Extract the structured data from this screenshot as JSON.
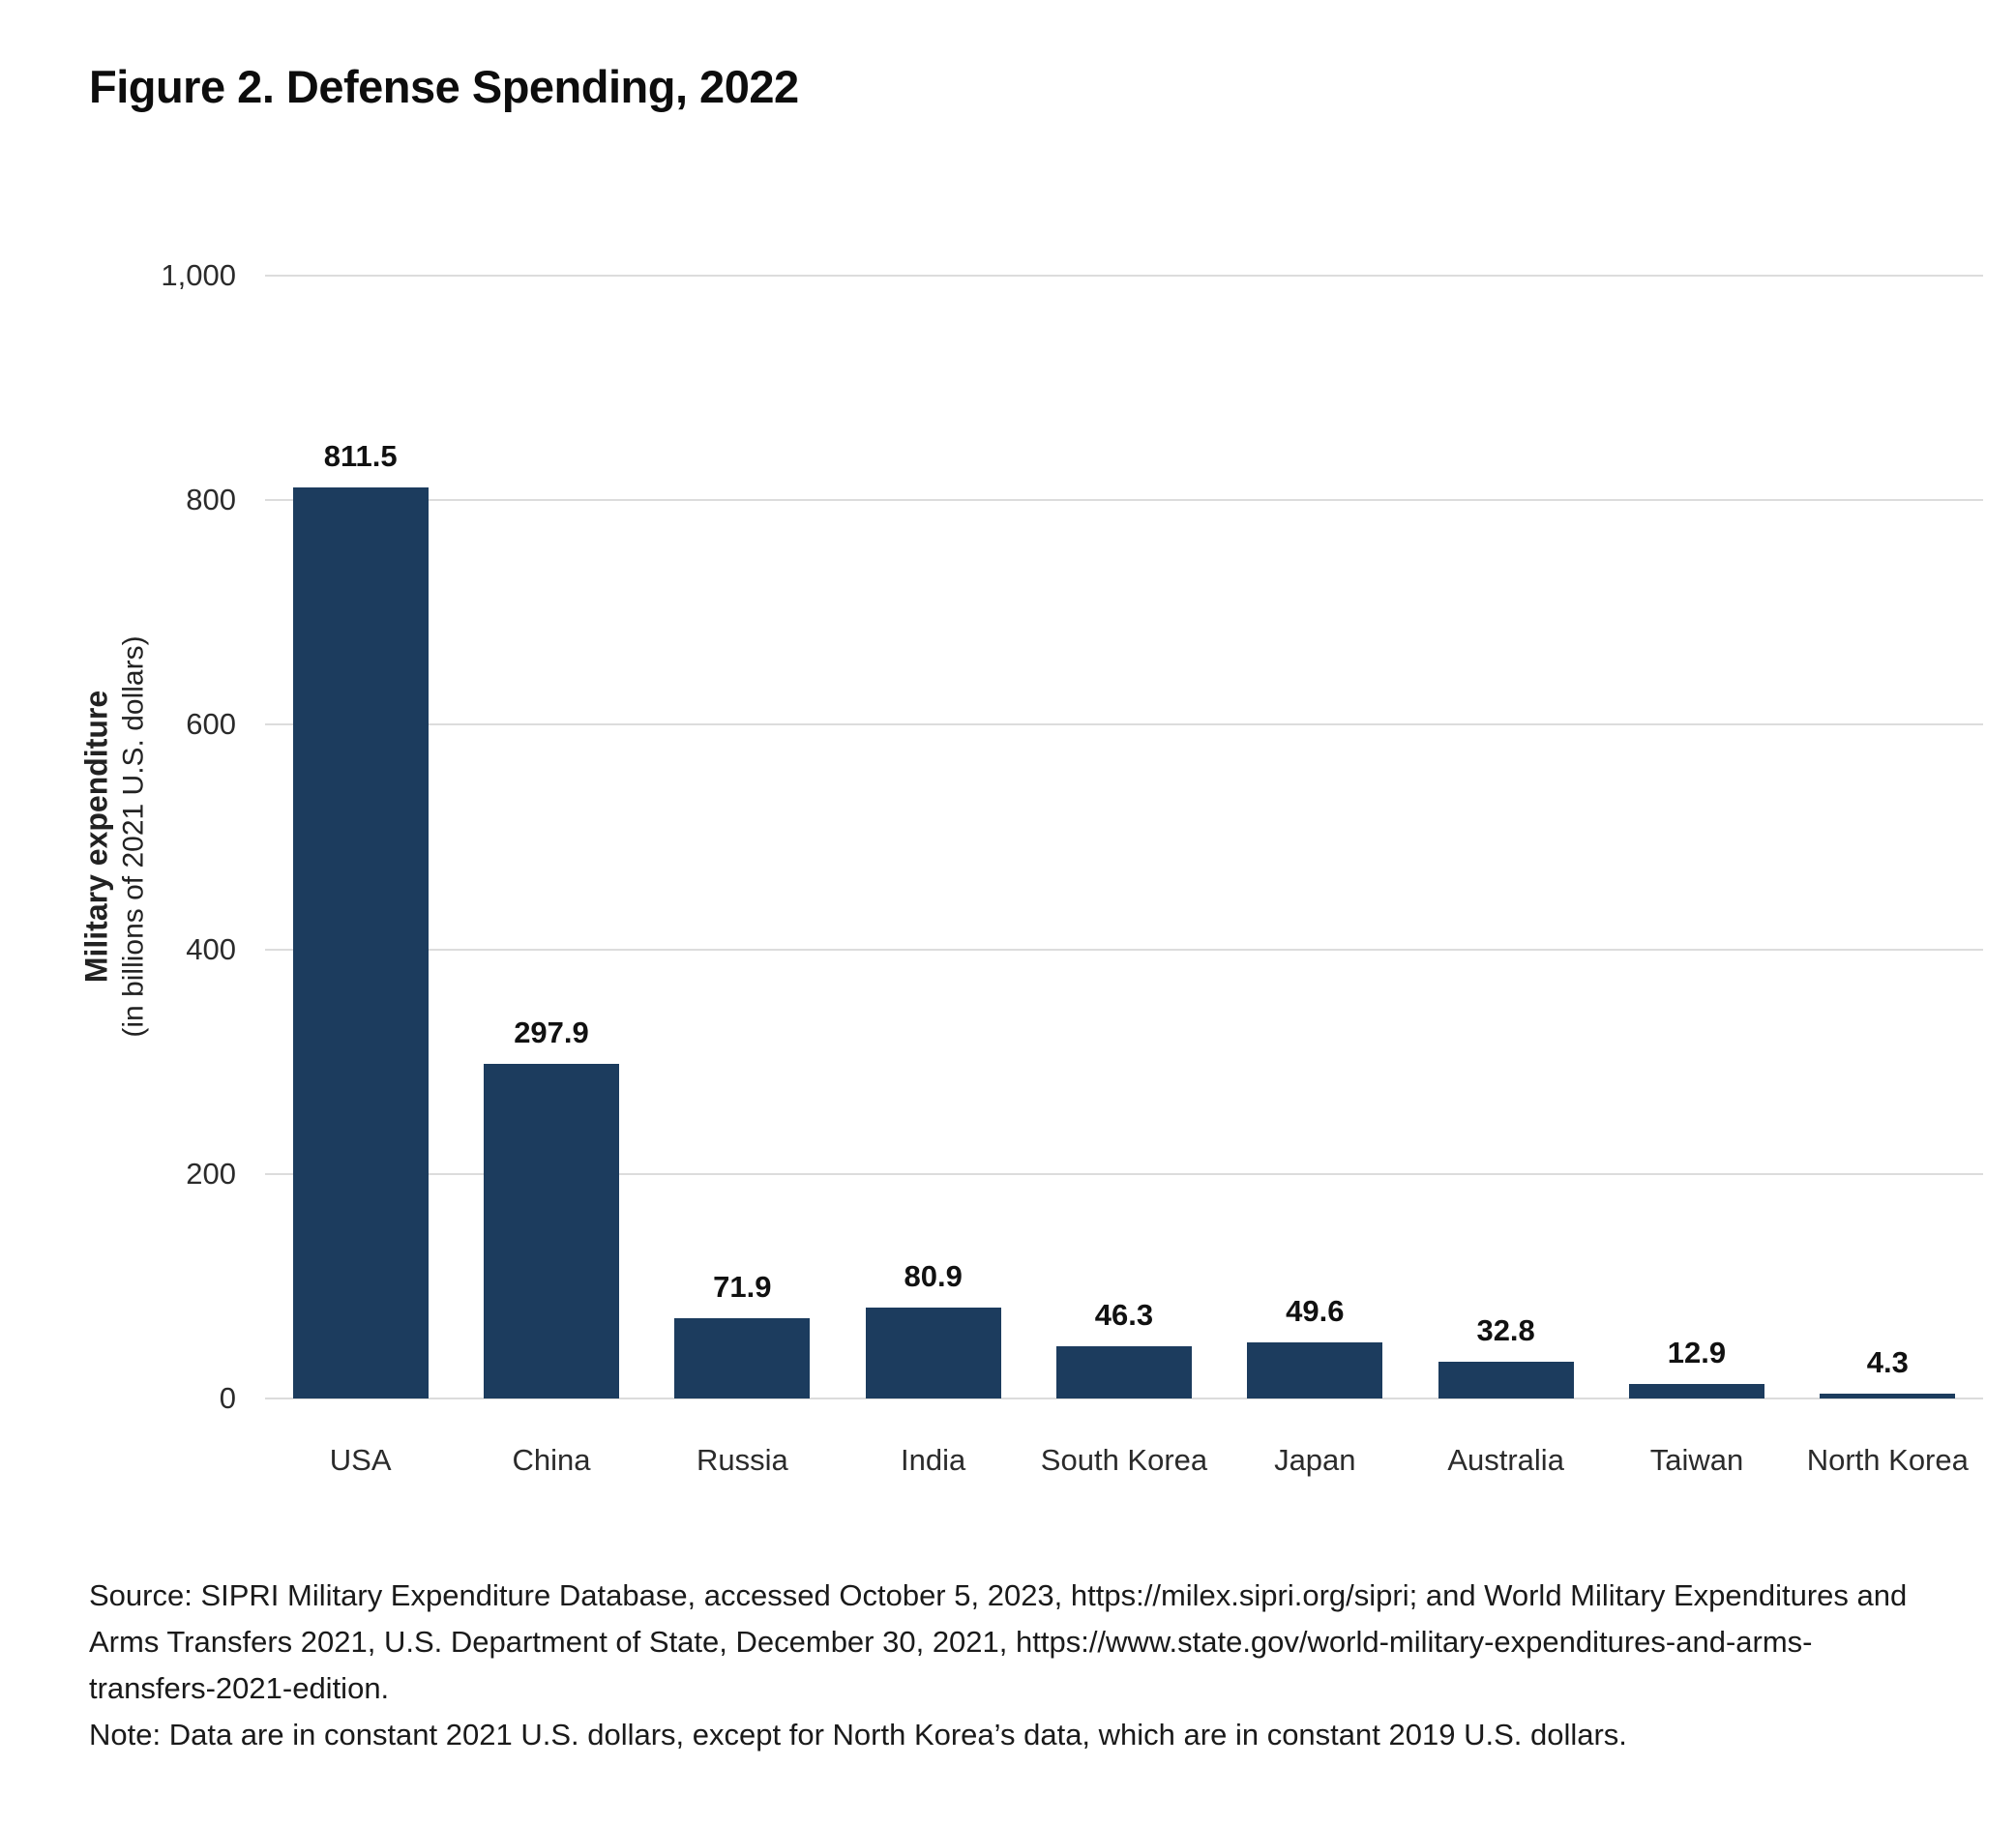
{
  "figure": {
    "title": "Figure 2. Defense Spending, 2022",
    "source": "Source: SIPRI Military Expenditure Database, accessed October 5, 2023, https://milex.sipri.org/sipri; and World Military Expenditures and Arms Transfers 2021, U.S. Department of State, December 30, 2021, https://www.state.gov/world-military-expenditures-and-arms-transfers-2021-edition.",
    "note": "Note: Data are in constant 2021 U.S. dollars, except for North Korea’s data, which are in constant 2019 U.S. dollars."
  },
  "chart_data": {
    "type": "bar",
    "title": "Figure 2. Defense Spending, 2022",
    "categories": [
      "USA",
      "China",
      "Russia",
      "India",
      "South Korea",
      "Japan",
      "Australia",
      "Taiwan",
      "North Korea"
    ],
    "values": [
      811.5,
      297.9,
      71.9,
      80.9,
      46.3,
      49.6,
      32.8,
      12.9,
      4.3
    ],
    "value_labels": [
      "811.5",
      "297.9",
      "71.9",
      "80.9",
      "46.3",
      "49.6",
      "32.8",
      "12.9",
      "4.3"
    ],
    "xlabel": "",
    "ylabel_bold": "Military expenditure",
    "ylabel_sub": "(in billions of 2021 U.S. dollars)",
    "ylim": [
      0,
      1000
    ],
    "yticks": [
      0,
      200,
      400,
      600,
      800,
      1000
    ],
    "ytick_labels": [
      "0",
      "200",
      "400",
      "600",
      "800",
      "1,000"
    ],
    "grid": true,
    "legend": "none",
    "bar_color": "#1c3c5e"
  },
  "colors": {
    "bar": "#1c3c5e",
    "gridline": "#dcdcdc",
    "text": "#1a1a1a"
  }
}
